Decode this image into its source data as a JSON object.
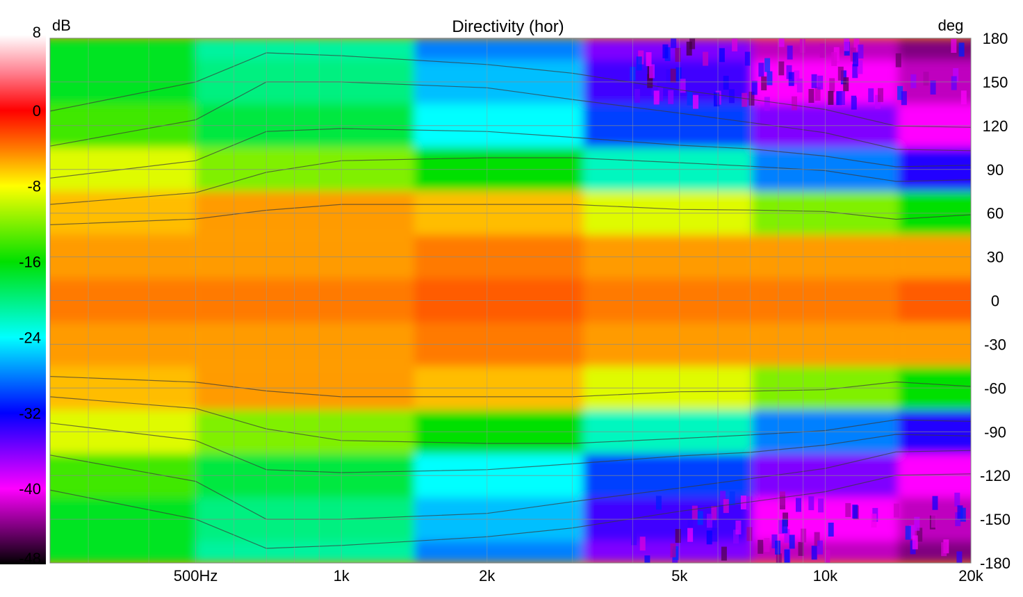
{
  "chart_data": {
    "type": "heatmap",
    "title": "Directivity (hor)",
    "colorbar_label": "dB",
    "yaxis_unit_label": "deg",
    "x_scale": "log",
    "xlim": [
      250,
      20000
    ],
    "ylim": [
      -180,
      180
    ],
    "zlim": [
      -48,
      8
    ],
    "x_ticks": [
      {
        "value": 500,
        "label": "500Hz"
      },
      {
        "value": 1000,
        "label": "1k"
      },
      {
        "value": 2000,
        "label": "2k"
      },
      {
        "value": 5000,
        "label": "5k"
      },
      {
        "value": 10000,
        "label": "10k"
      },
      {
        "value": 20000,
        "label": "20k"
      }
    ],
    "y_ticks": [
      {
        "value": 180,
        "label": "180"
      },
      {
        "value": 150,
        "label": "150"
      },
      {
        "value": 120,
        "label": "120"
      },
      {
        "value": 90,
        "label": "90"
      },
      {
        "value": 60,
        "label": "60"
      },
      {
        "value": 30,
        "label": "30"
      },
      {
        "value": 0,
        "label": "0"
      },
      {
        "value": -30,
        "label": "-30"
      },
      {
        "value": -60,
        "label": "-60"
      },
      {
        "value": -90,
        "label": "-90"
      },
      {
        "value": -120,
        "label": "-120"
      },
      {
        "value": -150,
        "label": "-150"
      },
      {
        "value": -180,
        "label": "-180"
      }
    ],
    "colorbar_ticks": [
      {
        "value": 8,
        "label": "8"
      },
      {
        "value": 0,
        "label": "0"
      },
      {
        "value": -8,
        "label": "-8"
      },
      {
        "value": -16,
        "label": "-16"
      },
      {
        "value": -24,
        "label": "-24"
      },
      {
        "value": -32,
        "label": "-32"
      },
      {
        "value": -40,
        "label": "-40"
      },
      {
        "value": -48,
        "label": "-48"
      }
    ],
    "colormap": [
      {
        "value": 8,
        "color": "#ffffff"
      },
      {
        "value": 4,
        "color": "#ff8090"
      },
      {
        "value": 0,
        "color": "#ff0000"
      },
      {
        "value": -4,
        "color": "#ff7a00"
      },
      {
        "value": -8,
        "color": "#ffff00"
      },
      {
        "value": -16,
        "color": "#00e000"
      },
      {
        "value": -24,
        "color": "#00ffff"
      },
      {
        "value": -32,
        "color": "#0000ff"
      },
      {
        "value": -40,
        "color": "#ff00ff"
      },
      {
        "value": -48,
        "color": "#000000"
      }
    ],
    "grid": true,
    "contour_lines": true,
    "frequencies": [
      250,
      500,
      700,
      1000,
      2000,
      3000,
      5000,
      7000,
      10000,
      14000,
      20000
    ],
    "angles": [
      -180,
      -150,
      -120,
      -90,
      -60,
      -30,
      0,
      30,
      60,
      90,
      120,
      150,
      180
    ],
    "values": [
      [
        -4,
        -4,
        -3,
        -4,
        -4,
        -3
      ],
      [
        -5,
        -5,
        -4,
        -5,
        -5,
        -5
      ],
      [
        -6,
        -5,
        -6,
        -9,
        -12,
        -16
      ],
      [
        -9,
        -12,
        -16,
        -22,
        -28,
        -33
      ],
      [
        -14,
        -18,
        -24,
        -30,
        -36,
        -40
      ],
      [
        -17,
        -20,
        -26,
        -34,
        -40,
        -42
      ],
      [
        -17,
        -21,
        -28,
        -36,
        -42,
        -44
      ]
    ],
    "values_layout": "rows = angle bands from 0 deg outwards (0, 30, 60, 90, 120, 150, 180 deg, mirrored for negative angles); columns = 250, 1k, 2k, 5k, 10k, 20k Hz (dB)"
  }
}
